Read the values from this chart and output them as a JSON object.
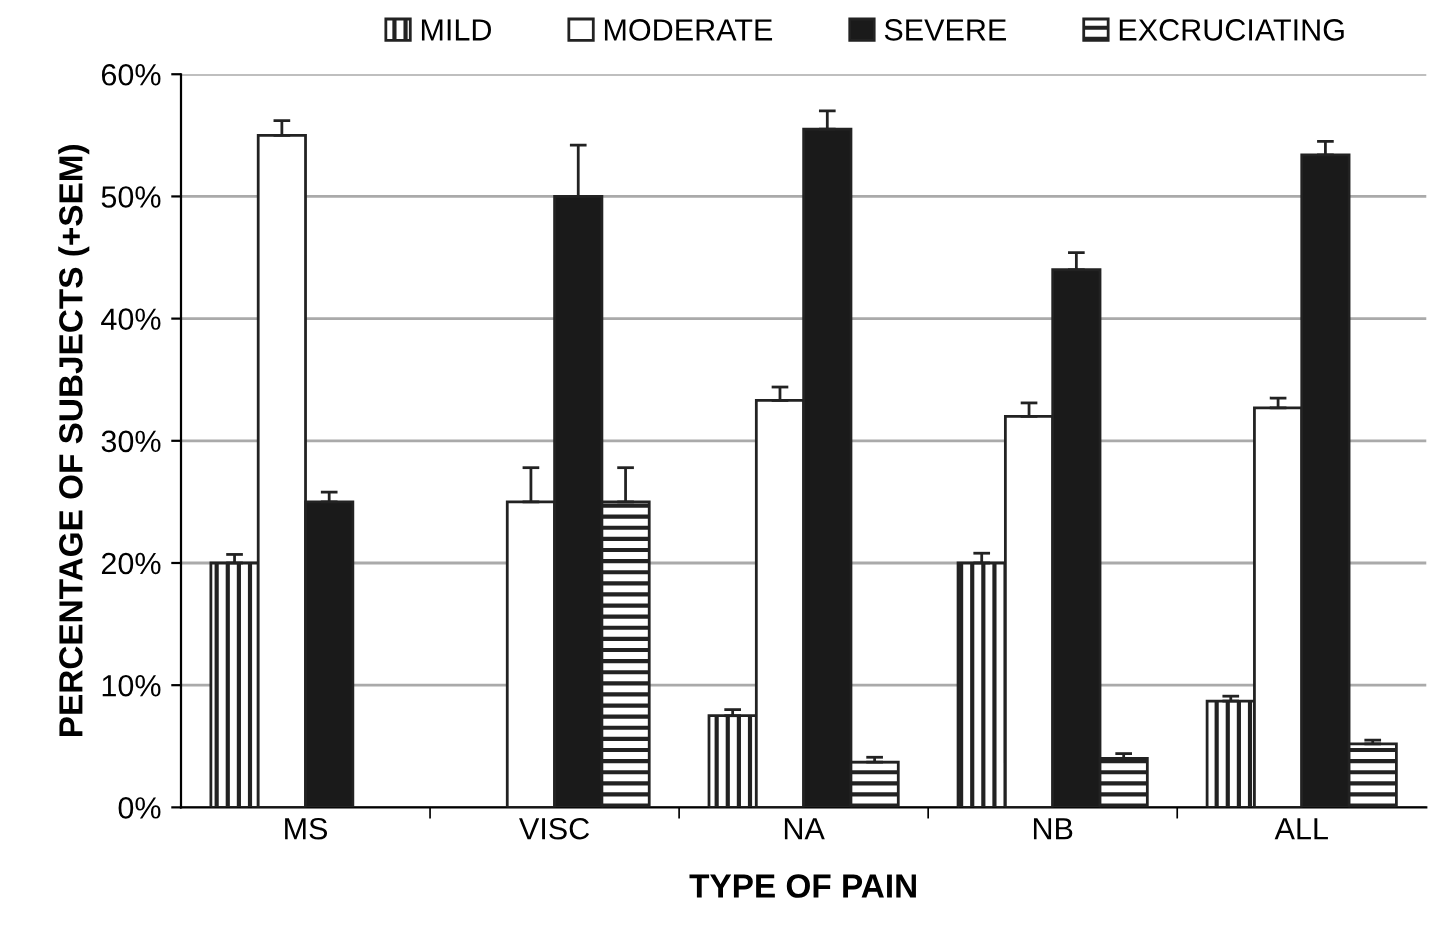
{
  "chart_data": {
    "type": "bar",
    "xlabel": "TYPE OF PAIN",
    "ylabel": "PERCENTAGE OF SUBJECTS (+SEM)",
    "categories": [
      "MS",
      "VISC",
      "NA",
      "NB",
      "ALL"
    ],
    "series": [
      {
        "name": "MILD",
        "color": "#222222",
        "values": [
          20,
          null,
          7.5,
          20,
          8.7
        ],
        "errors": [
          0.7,
          null,
          0.5,
          0.8,
          0.4
        ]
      },
      {
        "name": "MODERATE",
        "color": "#ffffff",
        "values": [
          55,
          25,
          33.3,
          32,
          32.7
        ],
        "errors": [
          1.2,
          2.8,
          1.1,
          1.1,
          0.8
        ]
      },
      {
        "name": "SEVERE",
        "color": "#1a1a1a",
        "values": [
          25,
          50,
          55.5,
          44,
          53.4
        ],
        "errors": [
          0.8,
          4.2,
          1.5,
          1.4,
          1.1
        ]
      },
      {
        "name": "EXCRUCIATING",
        "color": "#222222",
        "values": [
          null,
          25,
          3.7,
          4,
          5.2
        ],
        "errors": [
          null,
          2.8,
          0.4,
          0.4,
          0.3
        ]
      }
    ],
    "ylim": [
      0,
      60
    ],
    "yticks": [
      {
        "value": 0,
        "label": "0%"
      },
      {
        "value": 10,
        "label": "10%"
      },
      {
        "value": 20,
        "label": "20%"
      },
      {
        "value": 30,
        "label": "30%"
      },
      {
        "value": 40,
        "label": "40%"
      },
      {
        "value": 50,
        "label": "50%"
      },
      {
        "value": 60,
        "label": "60%"
      }
    ],
    "grid": "y",
    "legend": "top"
  }
}
